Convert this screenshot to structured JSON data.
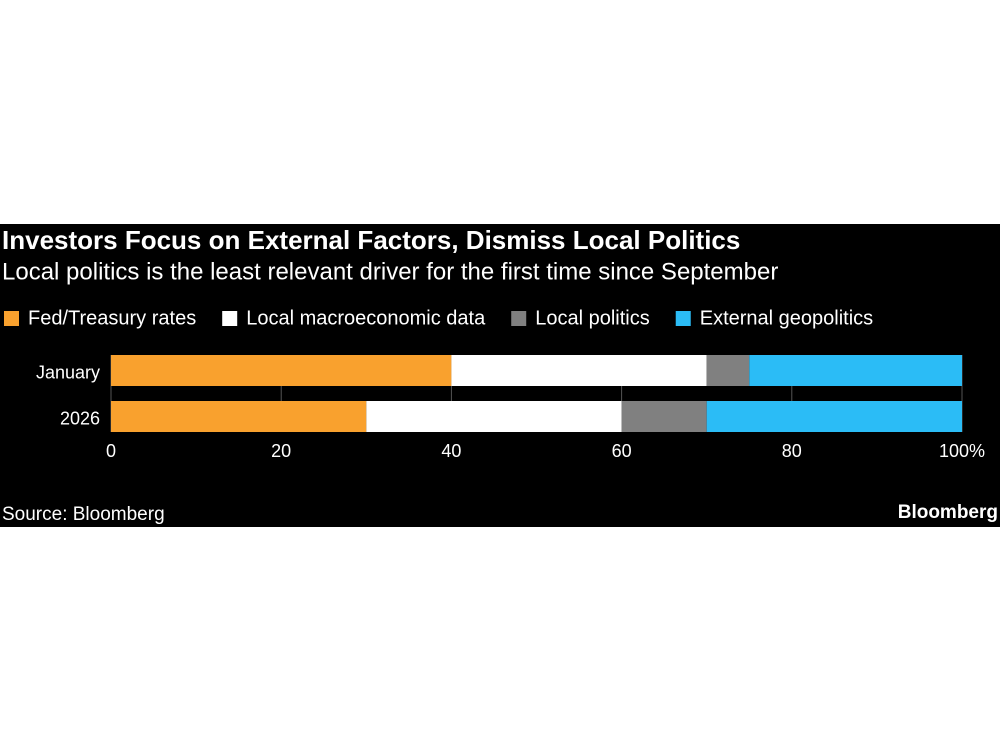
{
  "chart_data": {
    "type": "stacked-bar-horizontal",
    "title": "Investors Focus on External Factors, Dismiss Local Politics",
    "subtitle": "Local politics is the least relevant driver for the first time since September",
    "categories": [
      "January",
      "2026"
    ],
    "series": [
      {
        "name": "Fed/Treasury rates",
        "color": "#f9a12e",
        "values": [
          40,
          30
        ]
      },
      {
        "name": "Local macroeconomic data",
        "color": "#ffffff",
        "values": [
          30,
          30
        ]
      },
      {
        "name": "Local politics",
        "color": "#808080",
        "values": [
          5,
          10
        ]
      },
      {
        "name": "External geopolitics",
        "color": "#2bbcf6",
        "values": [
          25,
          30
        ]
      }
    ],
    "xlim": [
      0,
      100
    ],
    "xticks": [
      0,
      20,
      40,
      60,
      80,
      {
        "value": 100,
        "label": "100%"
      }
    ],
    "grid": true,
    "source": "Source: Bloomberg",
    "logo": "Bloomberg"
  }
}
